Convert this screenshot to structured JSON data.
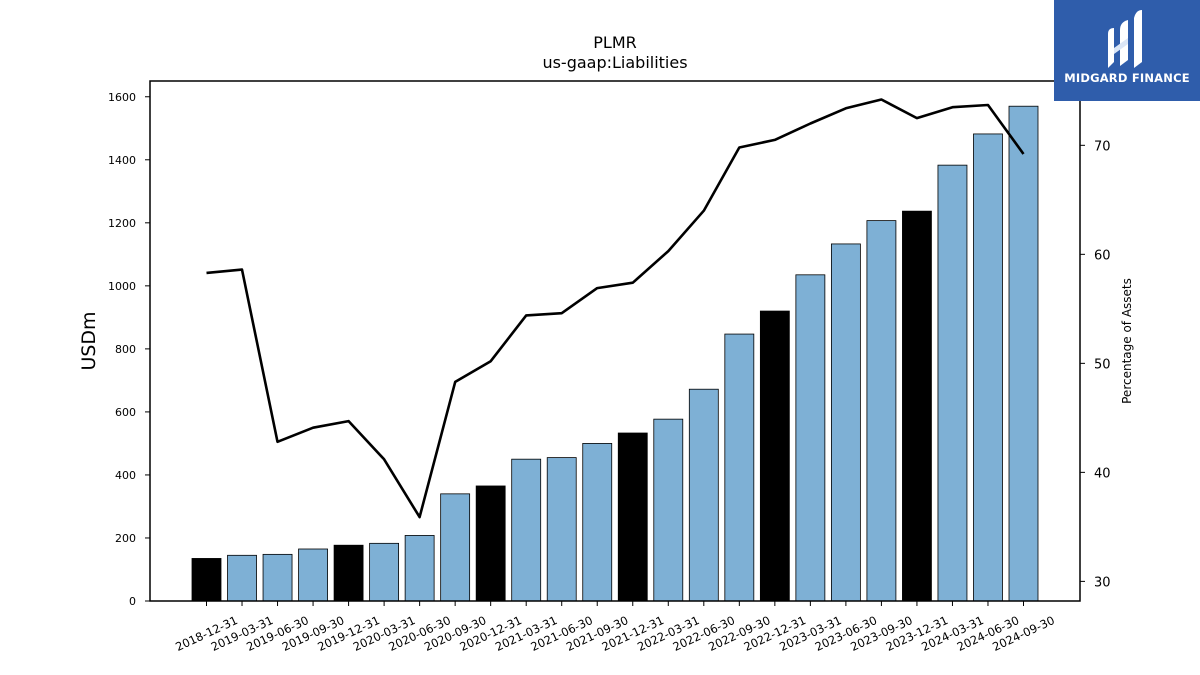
{
  "chart_data": {
    "type": "bar",
    "title": "PLMR",
    "subtitle": "us-gaap:Liabilities",
    "ylabel": "USDm",
    "y2label": "Percentage of Assets",
    "ylim": [
      0,
      1650
    ],
    "y2lim": [
      28.2,
      75.9
    ],
    "yticks": [
      0,
      200,
      400,
      600,
      800,
      1000,
      1200,
      1400,
      1600
    ],
    "y2ticks": [
      30,
      40,
      50,
      60,
      70
    ],
    "grid": false,
    "categories": [
      "2018-12-31",
      "2019-03-31",
      "2019-06-30",
      "2019-09-30",
      "2019-12-31",
      "2020-03-31",
      "2020-06-30",
      "2020-09-30",
      "2020-12-31",
      "2021-03-31",
      "2021-06-30",
      "2021-09-30",
      "2021-12-31",
      "2022-03-31",
      "2022-06-30",
      "2022-09-30",
      "2022-12-31",
      "2023-03-31",
      "2023-06-30",
      "2023-09-30",
      "2023-12-31",
      "2024-03-31",
      "2024-06-30",
      "2024-09-30"
    ],
    "series": [
      {
        "type": "bar",
        "axis": "left",
        "values": [
          135,
          145,
          148,
          165,
          177,
          183,
          208,
          340,
          365,
          450,
          455,
          500,
          533,
          577,
          672,
          847,
          920,
          1035,
          1133,
          1207,
          1237,
          1383,
          1482,
          1570
        ],
        "colors": [
          "#000000",
          "#7eb0d5",
          "#7eb0d5",
          "#7eb0d5",
          "#000000",
          "#7eb0d5",
          "#7eb0d5",
          "#7eb0d5",
          "#000000",
          "#7eb0d5",
          "#7eb0d5",
          "#7eb0d5",
          "#000000",
          "#7eb0d5",
          "#7eb0d5",
          "#7eb0d5",
          "#000000",
          "#7eb0d5",
          "#7eb0d5",
          "#7eb0d5",
          "#000000",
          "#7eb0d5",
          "#7eb0d5",
          "#7eb0d5"
        ]
      },
      {
        "type": "line",
        "axis": "right",
        "values": [
          58.3,
          58.6,
          42.8,
          44.1,
          44.7,
          41.2,
          35.9,
          48.3,
          50.2,
          54.4,
          54.6,
          56.9,
          57.4,
          60.3,
          64.0,
          69.8,
          70.5,
          72.0,
          73.4,
          74.2,
          72.5,
          73.5,
          73.7,
          69.2
        ],
        "color": "#000000"
      }
    ]
  },
  "logo": {
    "text": "MIDGARD FINANCE",
    "bg_color": "#2f5dab"
  }
}
